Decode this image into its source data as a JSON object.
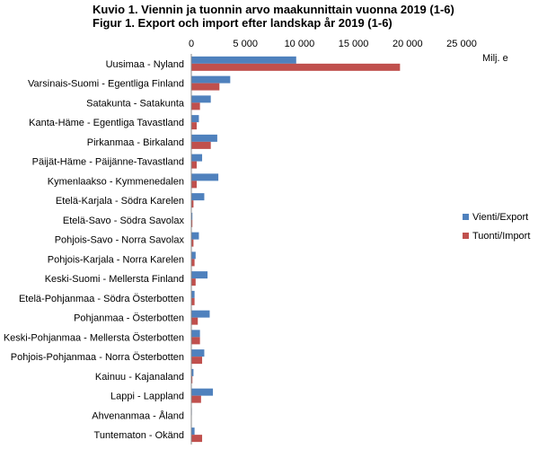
{
  "chart_data": {
    "type": "bar",
    "orientation": "horizontal",
    "title": "Kuvio 1. Viennin ja tuonnin arvo maakunnittain vuonna 2019 (1-6)",
    "subtitle": "Figur 1. Export och import efter landskap år 2019 (1-6)",
    "unit_label": "Milj. e",
    "xlim": [
      0,
      25000
    ],
    "x_ticks": [
      0,
      5000,
      10000,
      15000,
      20000,
      25000
    ],
    "x_tick_labels": [
      "0",
      "5 000",
      "10 000",
      "15 000",
      "20 000",
      "25 000"
    ],
    "grid": false,
    "legend_position": "right",
    "categories": [
      "Uusimaa - Nyland",
      "Varsinais-Suomi - Egentliga Finland",
      "Satakunta - Satakunta",
      "Kanta-Häme - Egentliga Tavastland",
      "Pirkanmaa - Birkaland",
      "Päijät-Häme - Päijänne-Tavastland",
      "Kymenlaakso - Kymmenedalen",
      "Etelä-Karjala - Södra Karelen",
      "Etelä-Savo - Södra Savolax",
      "Pohjois-Savo - Norra Savolax",
      "Pohjois-Karjala - Norra Karelen",
      "Keski-Suomi - Mellersta Finland",
      "Etelä-Pohjanmaa - Södra Österbotten",
      "Pohjanmaa - Österbotten",
      "Keski-Pohjanmaa - Mellersta Österbotten",
      "Pohjois-Pohjanmaa - Norra Österbotten",
      "Kainuu - Kajanaland",
      "Lappi - Lappland",
      "Ahvenanmaa - Åland",
      "Tuntematon - Okänd"
    ],
    "series": [
      {
        "name": "Vienti/Export",
        "color": "#4F81BD",
        "values": [
          9700,
          3600,
          1800,
          700,
          2400,
          1000,
          2500,
          1200,
          100,
          700,
          400,
          1500,
          300,
          1700,
          800,
          1200,
          200,
          2000,
          50,
          300
        ]
      },
      {
        "name": "Tuonti/Import",
        "color": "#C0504D",
        "values": [
          19300,
          2600,
          800,
          500,
          1800,
          500,
          500,
          200,
          100,
          200,
          300,
          400,
          300,
          600,
          800,
          1000,
          100,
          900,
          20,
          1000
        ]
      }
    ]
  }
}
